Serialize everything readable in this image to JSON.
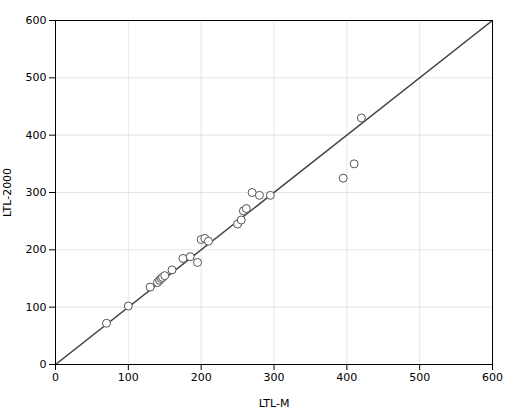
{
  "chart_data": {
    "type": "scatter",
    "xlabel": "LTL-M",
    "ylabel": "LTL-2000",
    "xlim": [
      0,
      600
    ],
    "ylim": [
      0,
      600
    ],
    "xticks": [
      0,
      100,
      200,
      300,
      400,
      500,
      600
    ],
    "yticks": [
      0,
      100,
      200,
      300,
      400,
      500,
      600
    ],
    "grid": true,
    "series": [
      {
        "type": "line",
        "color": "#444444",
        "x": [
          0,
          600
        ],
        "values": [
          0,
          600
        ]
      },
      {
        "type": "scatter",
        "color": "#555555",
        "marker": "circle",
        "x": [
          70,
          100,
          130,
          140,
          143,
          145,
          147,
          150,
          160,
          175,
          185,
          195,
          200,
          205,
          210,
          250,
          255,
          258,
          262,
          270,
          280,
          295,
          395,
          410,
          420
        ],
        "values": [
          72,
          102,
          135,
          143,
          147,
          150,
          152,
          155,
          165,
          185,
          188,
          178,
          218,
          220,
          215,
          245,
          252,
          268,
          272,
          300,
          295,
          295,
          325,
          350,
          430
        ]
      }
    ]
  }
}
